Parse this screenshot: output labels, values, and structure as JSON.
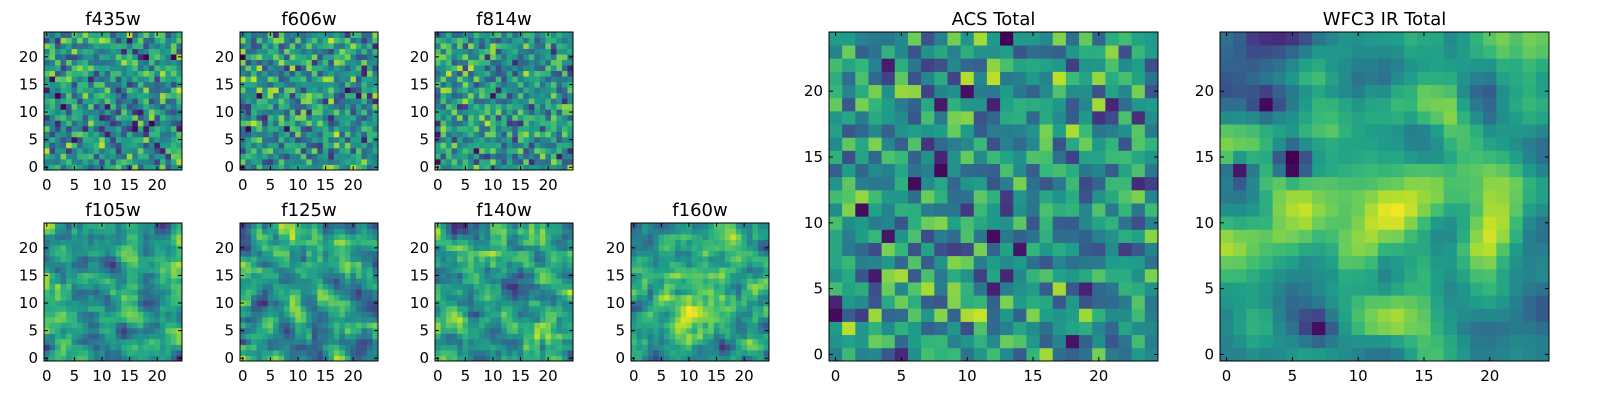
{
  "chart_data": [
    {
      "type": "heatmap",
      "title": "f435w",
      "size": 25,
      "xticks": [
        0,
        5,
        10,
        15,
        20
      ],
      "yticks": [
        0,
        5,
        10,
        15,
        20
      ],
      "xlim": [
        -0.5,
        24.5
      ],
      "ylim": [
        -0.5,
        24.5
      ],
      "grid": false,
      "colormap": "viridis",
      "seed": 11,
      "smooth": 0,
      "blobs": []
    },
    {
      "type": "heatmap",
      "title": "f606w",
      "size": 25,
      "xticks": [
        0,
        5,
        10,
        15,
        20
      ],
      "yticks": [
        0,
        5,
        10,
        15,
        20
      ],
      "xlim": [
        -0.5,
        24.5
      ],
      "ylim": [
        -0.5,
        24.5
      ],
      "grid": false,
      "colormap": "viridis",
      "seed": 23,
      "smooth": 0,
      "blobs": []
    },
    {
      "type": "heatmap",
      "title": "f814w",
      "size": 25,
      "xticks": [
        0,
        5,
        10,
        15,
        20
      ],
      "yticks": [
        0,
        5,
        10,
        15,
        20
      ],
      "xlim": [
        -0.5,
        24.5
      ],
      "ylim": [
        -0.5,
        24.5
      ],
      "grid": false,
      "colormap": "viridis",
      "seed": 37,
      "smooth": 0,
      "blobs": []
    },
    {
      "type": "heatmap",
      "title": "f105w",
      "size": 25,
      "xticks": [
        0,
        5,
        10,
        15,
        20
      ],
      "yticks": [
        0,
        5,
        10,
        15,
        20
      ],
      "xlim": [
        -0.5,
        24.5
      ],
      "ylim": [
        -0.5,
        24.5
      ],
      "grid": false,
      "colormap": "viridis",
      "seed": 41,
      "smooth": 1,
      "blobs": []
    },
    {
      "type": "heatmap",
      "title": "f125w",
      "size": 25,
      "xticks": [
        0,
        5,
        10,
        15,
        20
      ],
      "yticks": [
        0,
        5,
        10,
        15,
        20
      ],
      "xlim": [
        -0.5,
        24.5
      ],
      "ylim": [
        -0.5,
        24.5
      ],
      "grid": false,
      "colormap": "viridis",
      "seed": 53,
      "smooth": 1,
      "blobs": []
    },
    {
      "type": "heatmap",
      "title": "f140w",
      "size": 25,
      "xticks": [
        0,
        5,
        10,
        15,
        20
      ],
      "yticks": [
        0,
        5,
        10,
        15,
        20
      ],
      "xlim": [
        -0.5,
        24.5
      ],
      "ylim": [
        -0.5,
        24.5
      ],
      "grid": false,
      "colormap": "viridis",
      "seed": 67,
      "smooth": 1,
      "blobs": []
    },
    {
      "type": "heatmap",
      "title": "f160w",
      "size": 25,
      "xticks": [
        0,
        5,
        10,
        15,
        20
      ],
      "yticks": [
        0,
        5,
        10,
        15,
        20
      ],
      "xlim": [
        -0.5,
        24.5
      ],
      "ylim": [
        -0.5,
        24.5
      ],
      "grid": false,
      "colormap": "viridis",
      "seed": 79,
      "smooth": 1,
      "blobs": [
        [
          12,
          11,
          0.28,
          4
        ]
      ]
    },
    {
      "type": "heatmap",
      "title": "ACS Total",
      "size": 25,
      "xticks": [
        0,
        5,
        10,
        15,
        20
      ],
      "yticks": [
        0,
        5,
        10,
        15,
        20
      ],
      "xlim": [
        -0.5,
        24.5
      ],
      "ylim": [
        -0.5,
        24.5
      ],
      "grid": false,
      "colormap": "viridis",
      "seed": 97,
      "smooth": 0,
      "blobs": []
    },
    {
      "type": "heatmap",
      "title": "WFC3 IR Total",
      "size": 25,
      "xticks": [
        0,
        5,
        10,
        15,
        20
      ],
      "yticks": [
        0,
        5,
        10,
        15,
        20
      ],
      "xlim": [
        -0.5,
        24.5
      ],
      "ylim": [
        -0.5,
        24.5
      ],
      "grid": false,
      "colormap": "viridis",
      "seed": 131,
      "smooth": 2,
      "blobs": [
        [
          11,
          11,
          0.45,
          3.5
        ],
        [
          5,
          14.5,
          -0.85,
          0.9
        ],
        [
          1,
          14,
          -0.6,
          0.8
        ],
        [
          3,
          19,
          -0.45,
          0.8
        ],
        [
          7,
          2,
          -0.35,
          0.8
        ]
      ]
    }
  ]
}
